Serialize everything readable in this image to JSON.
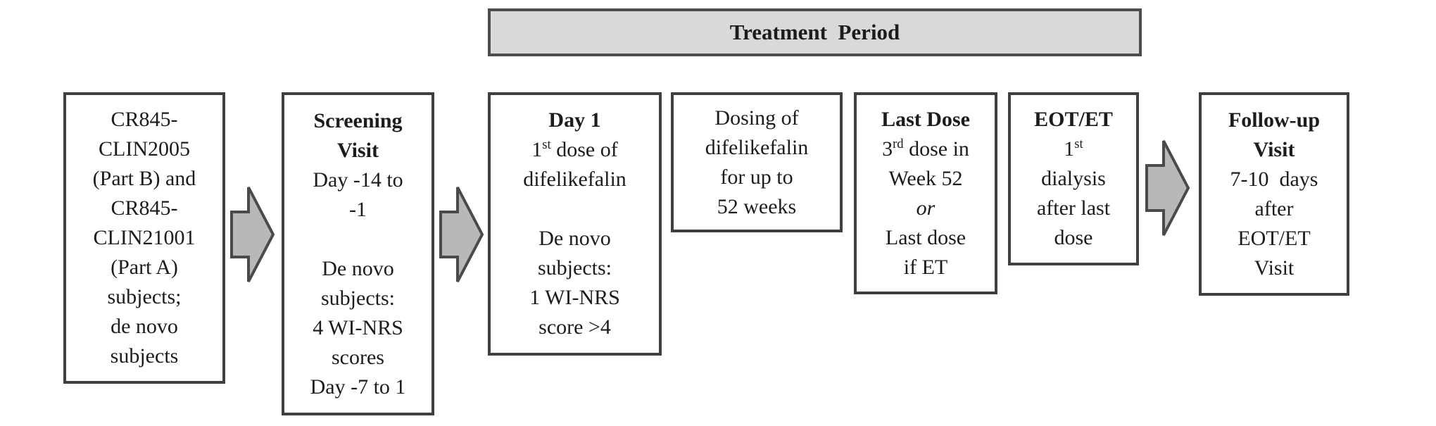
{
  "title_bar": {
    "label": "Treatment  Period"
  },
  "boxes": [
    {
      "name": "source-subjects",
      "lines": [
        {
          "segments": [
            {
              "text": "CR845-"
            }
          ]
        },
        {
          "segments": [
            {
              "text": "CLIN2005"
            }
          ]
        },
        {
          "segments": [
            {
              "text": "(Part B) and"
            }
          ]
        },
        {
          "segments": [
            {
              "text": "CR845-"
            }
          ]
        },
        {
          "segments": [
            {
              "text": "CLIN21001"
            }
          ]
        },
        {
          "segments": [
            {
              "text": "(Part A)"
            }
          ]
        },
        {
          "segments": [
            {
              "text": "subjects;"
            }
          ]
        },
        {
          "segments": [
            {
              "text": "de novo"
            }
          ]
        },
        {
          "segments": [
            {
              "text": "subjects"
            }
          ]
        }
      ]
    },
    {
      "name": "screening-visit",
      "lines": [
        {
          "bold": true,
          "segments": [
            {
              "text": "Screening"
            }
          ]
        },
        {
          "bold": true,
          "segments": [
            {
              "text": "Visit"
            }
          ]
        },
        {
          "segments": [
            {
              "text": "Day -14 to"
            }
          ]
        },
        {
          "segments": [
            {
              "text": "-1"
            }
          ]
        },
        {
          "segments": []
        },
        {
          "segments": [
            {
              "text": "De novo"
            }
          ]
        },
        {
          "segments": [
            {
              "text": "subjects:"
            }
          ]
        },
        {
          "segments": [
            {
              "text": "4 WI-NRS"
            }
          ]
        },
        {
          "segments": [
            {
              "text": "scores"
            }
          ]
        },
        {
          "segments": [
            {
              "text": "Day -7 to 1"
            }
          ]
        }
      ]
    },
    {
      "name": "day-1",
      "lines": [
        {
          "bold": true,
          "segments": [
            {
              "text": "Day 1"
            }
          ]
        },
        {
          "segments": [
            {
              "text": "1"
            },
            {
              "text": "st",
              "sup": true
            },
            {
              "text": " dose of"
            }
          ]
        },
        {
          "segments": [
            {
              "text": "difelikefalin"
            }
          ]
        },
        {
          "segments": []
        },
        {
          "segments": [
            {
              "text": "De novo"
            }
          ]
        },
        {
          "segments": [
            {
              "text": "subjects:"
            }
          ]
        },
        {
          "segments": [
            {
              "text": "1 WI-NRS"
            }
          ]
        },
        {
          "segments": [
            {
              "text": "score >4"
            }
          ]
        }
      ]
    },
    {
      "name": "dosing",
      "lines": [
        {
          "segments": [
            {
              "text": "Dosing of"
            }
          ]
        },
        {
          "segments": [
            {
              "text": "difelikefalin"
            }
          ]
        },
        {
          "segments": [
            {
              "text": "for up to"
            }
          ]
        },
        {
          "segments": [
            {
              "text": "52 weeks"
            }
          ]
        }
      ]
    },
    {
      "name": "last-dose",
      "lines": [
        {
          "bold": true,
          "segments": [
            {
              "text": "Last Dose"
            }
          ]
        },
        {
          "segments": [
            {
              "text": "3"
            },
            {
              "text": "rd",
              "sup": true
            },
            {
              "text": " dose in"
            }
          ]
        },
        {
          "segments": [
            {
              "text": "Week 52"
            }
          ]
        },
        {
          "italic": true,
          "segments": [
            {
              "text": "or"
            }
          ]
        },
        {
          "segments": [
            {
              "text": "Last dose"
            }
          ]
        },
        {
          "segments": [
            {
              "text": "if ET"
            }
          ]
        }
      ]
    },
    {
      "name": "eot-et",
      "lines": [
        {
          "bold": true,
          "segments": [
            {
              "text": "EOT/ET"
            }
          ]
        },
        {
          "segments": [
            {
              "text": "1"
            },
            {
              "text": "st",
              "sup": true
            }
          ]
        },
        {
          "segments": [
            {
              "text": "dialysis"
            }
          ]
        },
        {
          "segments": [
            {
              "text": "after last"
            }
          ]
        },
        {
          "segments": [
            {
              "text": "dose"
            }
          ]
        }
      ]
    },
    {
      "name": "follow-up-visit",
      "lines": [
        {
          "bold": true,
          "segments": [
            {
              "text": "Follow-up"
            }
          ]
        },
        {
          "bold": true,
          "segments": [
            {
              "text": "Visit"
            }
          ]
        },
        {
          "segments": [
            {
              "text": "7-10  days"
            }
          ]
        },
        {
          "segments": [
            {
              "text": "after"
            }
          ]
        },
        {
          "segments": [
            {
              "text": "EOT/ET"
            }
          ]
        },
        {
          "segments": [
            {
              "text": "Visit"
            }
          ]
        }
      ]
    }
  ],
  "colors": {
    "box_border": "#3f3f3f",
    "bar_fill": "#d9d9d9",
    "bar_border": "#4d4d4d",
    "arrow_fill": "#b8b8b8",
    "arrow_outline": "#4a4a4a",
    "text": "#1c1c1c"
  }
}
